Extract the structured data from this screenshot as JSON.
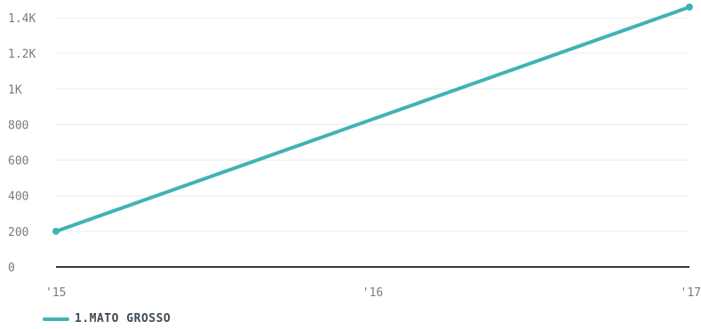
{
  "chart_data": {
    "type": "line",
    "x": [
      "'15",
      "'16",
      "'17"
    ],
    "y_ticks": [
      "0",
      "200",
      "400",
      "600",
      "800",
      "1K",
      "1.2K",
      "1.4K"
    ],
    "y_tick_values": [
      0,
      200,
      400,
      600,
      800,
      1000,
      1200,
      1400
    ],
    "ylim": [
      0,
      1400
    ],
    "grid": true,
    "legend_position": "bottom-left",
    "series": [
      {
        "name": "1.MATO GROSSO",
        "x_values": [
          0,
          2
        ],
        "values": [
          200,
          1460
        ],
        "color": "#3fb3b3"
      }
    ]
  },
  "legend": {
    "label": "1.MATO GROSSO",
    "color": "#3fb3b3"
  }
}
